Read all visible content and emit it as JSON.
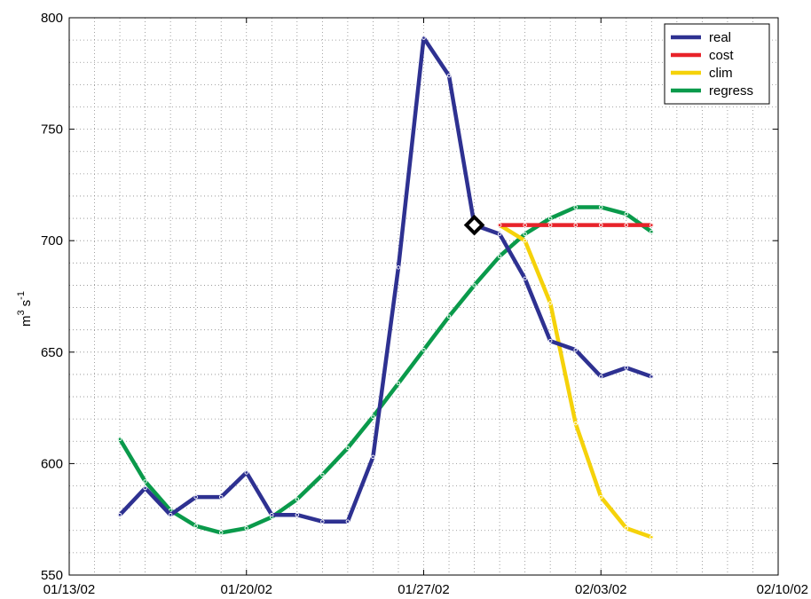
{
  "chart_data": {
    "type": "line",
    "title": "",
    "xlabel": "",
    "ylabel": "m^3 s^-1",
    "ylabel_parts": {
      "base1": "m",
      "exp1": "3",
      "base2": "s",
      "exp2": "-1"
    },
    "ylim": [
      550,
      800
    ],
    "yticks": [
      550,
      600,
      650,
      700,
      750,
      800
    ],
    "xlim": [
      "01/13/02",
      "02/10/02"
    ],
    "xticks": [
      "01/13/02",
      "01/20/02",
      "01/27/02",
      "02/03/02",
      "02/10/02"
    ],
    "grid": true,
    "legend": {
      "placement": "top-right",
      "entries": [
        "real",
        "cost",
        "clim",
        "regress"
      ]
    },
    "series": [
      {
        "name": "real",
        "color": "#2e3191",
        "points": [
          [
            "01/15/02",
            577
          ],
          [
            "01/16/02",
            589
          ],
          [
            "01/17/02",
            577
          ],
          [
            "01/18/02",
            585
          ],
          [
            "01/19/02",
            585
          ],
          [
            "01/20/02",
            596
          ],
          [
            "01/21/02",
            577
          ],
          [
            "01/22/02",
            577
          ],
          [
            "01/23/02",
            574
          ],
          [
            "01/24/02",
            574
          ],
          [
            "01/25/02",
            603
          ],
          [
            "01/26/02",
            688
          ],
          [
            "01/27/02",
            791
          ],
          [
            "01/28/02",
            774
          ],
          [
            "01/29/02",
            707
          ],
          [
            "01/30/02",
            703
          ],
          [
            "01/31/02",
            683
          ],
          [
            "02/01/02",
            655
          ],
          [
            "02/02/02",
            651
          ],
          [
            "02/03/02",
            639
          ],
          [
            "02/04/02",
            643
          ],
          [
            "02/05/02",
            639
          ]
        ]
      },
      {
        "name": "cost",
        "color": "#e8232a",
        "points": [
          [
            "01/30/02",
            707
          ],
          [
            "01/31/02",
            707
          ],
          [
            "02/01/02",
            707
          ],
          [
            "02/02/02",
            707
          ],
          [
            "02/03/02",
            707
          ],
          [
            "02/04/02",
            707
          ],
          [
            "02/05/02",
            707
          ]
        ]
      },
      {
        "name": "clim",
        "color": "#f5d20a",
        "points": [
          [
            "01/30/02",
            707
          ],
          [
            "01/31/02",
            700
          ],
          [
            "02/01/02",
            672
          ],
          [
            "02/02/02",
            618
          ],
          [
            "02/03/02",
            585
          ],
          [
            "02/04/02",
            571
          ],
          [
            "02/05/02",
            567
          ]
        ]
      },
      {
        "name": "regress",
        "color": "#0a9a4b",
        "points": [
          [
            "01/15/02",
            611
          ],
          [
            "01/16/02",
            592
          ],
          [
            "01/17/02",
            579
          ],
          [
            "01/18/02",
            572
          ],
          [
            "01/19/02",
            569
          ],
          [
            "01/20/02",
            571
          ],
          [
            "01/21/02",
            576
          ],
          [
            "01/22/02",
            584
          ],
          [
            "01/23/02",
            595
          ],
          [
            "01/24/02",
            607
          ],
          [
            "01/25/02",
            621
          ],
          [
            "01/26/02",
            636
          ],
          [
            "01/27/02",
            651
          ],
          [
            "01/28/02",
            666
          ],
          [
            "01/29/02",
            680
          ],
          [
            "01/30/02",
            693
          ],
          [
            "01/31/02",
            703
          ],
          [
            "02/01/02",
            710
          ],
          [
            "02/02/02",
            715
          ],
          [
            "02/03/02",
            715
          ],
          [
            "02/04/02",
            712
          ],
          [
            "02/05/02",
            704
          ]
        ]
      }
    ],
    "marker": {
      "date": "01/29/02",
      "value": 707,
      "shape": "diamond",
      "color": "#000000"
    }
  }
}
